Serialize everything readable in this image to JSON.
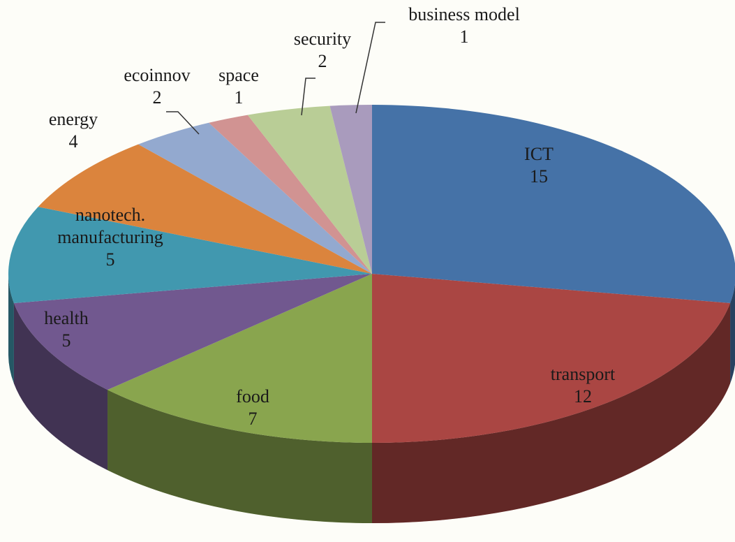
{
  "chart_data": {
    "type": "pie",
    "three_d": true,
    "categories": [
      "ICT",
      "transport",
      "food",
      "health",
      "nanotech. manufacturing",
      "energy",
      "ecoinnov",
      "space",
      "security",
      "business model"
    ],
    "values": [
      15,
      12,
      7,
      5,
      5,
      4,
      2,
      1,
      2,
      1
    ],
    "colors": [
      "#4572a7",
      "#aa4643",
      "#89a54e",
      "#71588f",
      "#4198af",
      "#db843d",
      "#93a9cf",
      "#d19392",
      "#b9cd96",
      "#a99bbd"
    ]
  }
}
